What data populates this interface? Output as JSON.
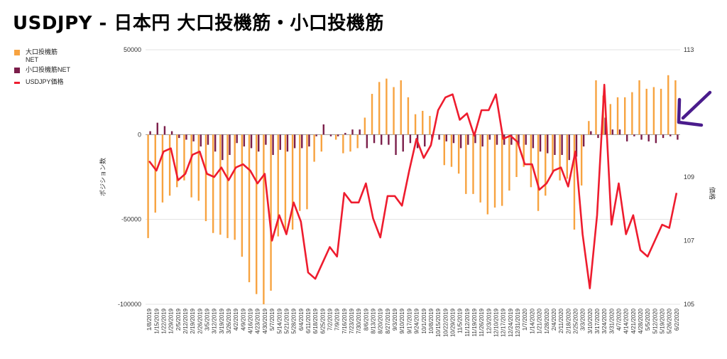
{
  "title": "USDJPY - 日本円 大口投機筋・小口投機筋",
  "chart_data": {
    "type": "bar+line",
    "legend": [
      {
        "label": "大口投機筋",
        "label2": "NET",
        "color": "#f7a340"
      },
      {
        "label": "小口投機筋NET",
        "color": "#7b1e4a"
      },
      {
        "label": "USDJPY価格",
        "color": "#ee1c2e"
      }
    ],
    "y_left": {
      "label": "ポジション数",
      "ticks": [
        "50000",
        "0",
        "-50000",
        "-100000"
      ],
      "min": -100000,
      "max": 50000
    },
    "y_right": {
      "label": "価格",
      "ticks": [
        "113",
        "109",
        "107",
        "105"
      ],
      "min": 105,
      "max": 113
    },
    "x_labels": [
      "1/8/2019",
      "1/15/2019",
      "1/22/2019",
      "1/29/2019",
      "2/5/2019",
      "2/12/2019",
      "2/19/2019",
      "2/26/2019",
      "3/5/2019",
      "3/12/2019",
      "3/19/2019",
      "3/26/2019",
      "4/2/2019",
      "4/9/2019",
      "4/16/2019",
      "4/23/2019",
      "4/30/2019",
      "5/7/2019",
      "5/14/2019",
      "5/21/2019",
      "5/28/2019",
      "6/4/2019",
      "6/11/2019",
      "6/18/2019",
      "6/25/2019",
      "7/2/2019",
      "7/9/2019",
      "7/16/2019",
      "7/23/2019",
      "7/30/2019",
      "8/6/2019",
      "8/13/2019",
      "8/20/2019",
      "8/27/2019",
      "9/3/2019",
      "9/10/2019",
      "9/17/2019",
      "9/24/2019",
      "10/1/2019",
      "10/8/2019",
      "10/15/2019",
      "10/22/2019",
      "10/29/2019",
      "11/5/2019",
      "11/12/2019",
      "11/19/2019",
      "11/26/2019",
      "12/3/2019",
      "12/10/2019",
      "12/17/2019",
      "12/24/2019",
      "12/31/2019",
      "1/7/2020",
      "1/14/2020",
      "1/21/2020",
      "1/28/2020",
      "2/4/2020",
      "2/11/2020",
      "2/18/2020",
      "2/25/2020",
      "3/3/2020",
      "3/10/2020",
      "3/17/2020",
      "3/24/2020",
      "3/31/2020",
      "4/7/2020",
      "4/14/2020",
      "4/21/2020",
      "4/28/2020",
      "5/5/2020",
      "5/12/2020",
      "5/19/2020",
      "5/26/2020",
      "6/2/2020"
    ],
    "large_net": [
      -61000,
      -46000,
      -40000,
      -36000,
      -31000,
      -27000,
      -37000,
      -39000,
      -51000,
      -58000,
      -59000,
      -61000,
      -62000,
      -72000,
      -87000,
      -94000,
      -100000,
      -92000,
      -60000,
      -57000,
      -56000,
      -45000,
      -44000,
      -16000,
      -10000,
      0,
      -3000,
      -11000,
      -10000,
      -8000,
      10000,
      24000,
      31000,
      33000,
      28000,
      32000,
      22000,
      12000,
      14000,
      11000,
      0,
      -18000,
      -19000,
      -23000,
      -35000,
      -35000,
      -40000,
      -47000,
      -43000,
      -42000,
      -33000,
      -25000,
      -19000,
      -31000,
      -45000,
      -36000,
      -22000,
      -27000,
      -26000,
      -56000,
      -30000,
      8000,
      32000,
      23000,
      18000,
      22000,
      22000,
      25000,
      32000,
      27000,
      28000,
      27000,
      35000,
      32000
    ],
    "small_net": [
      2000,
      7000,
      5000,
      2000,
      -2000,
      -3000,
      -4000,
      -7000,
      -6000,
      -10000,
      -15000,
      -12000,
      -5000,
      -7000,
      -8000,
      -10000,
      -6000,
      -12000,
      -9000,
      -10000,
      -8000,
      -8000,
      -7000,
      -1000,
      6000,
      -1000,
      -1000,
      1000,
      3000,
      3000,
      -8000,
      -5000,
      -6000,
      -6000,
      -12000,
      -10000,
      -5000,
      -8000,
      -7000,
      -3000,
      -3000,
      -4000,
      -5000,
      -8000,
      -6000,
      -5000,
      -7000,
      -3000,
      -6000,
      -6000,
      -6000,
      -6000,
      -6000,
      -8000,
      -10000,
      -11000,
      -12000,
      -12000,
      -15000,
      -13000,
      -7000,
      2000,
      -2000,
      10000,
      3000,
      3000,
      -4000,
      -1000,
      -3000,
      -4000,
      -5000,
      -2000,
      -1000,
      -3000
    ],
    "usdjpy": [
      109.5,
      109.2,
      109.8,
      109.9,
      108.9,
      109.1,
      109.7,
      109.8,
      109.1,
      109.0,
      109.3,
      108.9,
      109.3,
      109.4,
      109.2,
      108.8,
      109.1,
      107.0,
      107.8,
      107.2,
      108.2,
      107.6,
      106.0,
      105.8,
      106.3,
      106.8,
      106.5,
      108.5,
      108.2,
      108.2,
      108.8,
      107.7,
      107.1,
      108.4,
      108.4,
      108.1,
      109.2,
      110.2,
      109.6,
      110.0,
      111.1,
      111.5,
      111.6,
      110.8,
      111.0,
      110.3,
      111.1,
      111.1,
      111.6,
      110.2,
      110.3,
      110.1,
      109.4,
      109.4,
      108.6,
      108.8,
      109.2,
      109.3,
      108.7,
      109.8,
      107.2,
      105.5,
      107.8,
      111.9,
      107.5,
      108.8,
      107.2,
      107.8,
      106.7,
      106.5,
      107.0,
      107.5,
      107.4,
      108.5
    ]
  }
}
